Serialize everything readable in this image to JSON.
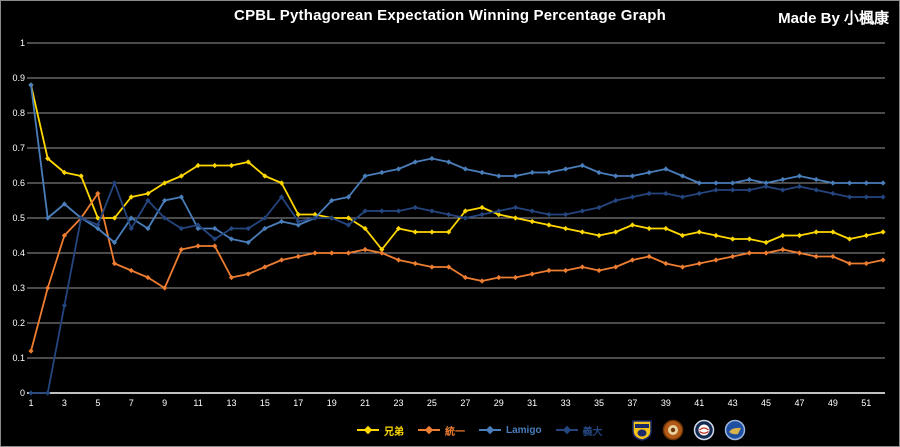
{
  "header": {
    "title": "CPBL Pythagorean Expectation Winning Percentage Graph",
    "credit": "Made By 小楓康"
  },
  "chart_data": {
    "type": "line",
    "title": "CPBL Pythagorean Expectation Winning Percentage Graph",
    "xlabel": "",
    "ylabel": "",
    "ylim": [
      0,
      1
    ],
    "grid": "horizontal",
    "legend_position": "bottom",
    "background": "#000000",
    "x_start": 1,
    "x_tick_labels": [
      "1",
      "3",
      "5",
      "7",
      "9",
      "11",
      "13",
      "15",
      "17",
      "19",
      "21",
      "23",
      "25",
      "27",
      "29",
      "31",
      "33",
      "35",
      "37",
      "39",
      "41",
      "43",
      "45",
      "47",
      "49",
      "51"
    ],
    "y_ticks": [
      0,
      0.1,
      0.2,
      0.3,
      0.4,
      0.5,
      0.6,
      0.7,
      0.8,
      0.9,
      1
    ],
    "y_tick_labels": [
      "0",
      "0.1",
      "0.2",
      "0.3",
      "0.4",
      "0.5",
      "0.6",
      "0.7",
      "0.8",
      "0.9",
      "1"
    ],
    "series": [
      {
        "key": "brothers",
        "name": "兄弟",
        "color": "#ffd800",
        "values": [
          0.88,
          0.67,
          0.63,
          0.62,
          0.5,
          0.5,
          0.56,
          0.57,
          0.6,
          0.62,
          0.65,
          0.65,
          0.65,
          0.66,
          0.62,
          0.6,
          0.51,
          0.51,
          0.5,
          0.5,
          0.47,
          0.41,
          0.47,
          0.46,
          0.46,
          0.46,
          0.52,
          0.53,
          0.51,
          0.5,
          0.49,
          0.48,
          0.47,
          0.46,
          0.45,
          0.46,
          0.48,
          0.47,
          0.47,
          0.45,
          0.46,
          0.45,
          0.44,
          0.44,
          0.43,
          0.45,
          0.45,
          0.46,
          0.46,
          0.44,
          0.45,
          0.46
        ]
      },
      {
        "key": "lions",
        "name": "統一",
        "color": "#ed7d31",
        "values": [
          0.12,
          0.3,
          0.45,
          0.5,
          0.57,
          0.37,
          0.35,
          0.33,
          0.3,
          0.41,
          0.42,
          0.42,
          0.33,
          0.34,
          0.36,
          0.38,
          0.39,
          0.4,
          0.4,
          0.4,
          0.41,
          0.4,
          0.38,
          0.37,
          0.36,
          0.36,
          0.33,
          0.32,
          0.33,
          0.33,
          0.34,
          0.35,
          0.35,
          0.36,
          0.35,
          0.36,
          0.38,
          0.39,
          0.37,
          0.36,
          0.37,
          0.38,
          0.39,
          0.4,
          0.4,
          0.41,
          0.4,
          0.39,
          0.39,
          0.37,
          0.37,
          0.38
        ]
      },
      {
        "key": "lamigo",
        "name": "Lamigo",
        "color": "#4a7ebb",
        "values": [
          0.88,
          0.5,
          0.54,
          0.5,
          0.47,
          0.43,
          0.5,
          0.47,
          0.55,
          0.56,
          0.47,
          0.47,
          0.44,
          0.43,
          0.47,
          0.49,
          0.48,
          0.5,
          0.55,
          0.56,
          0.62,
          0.63,
          0.64,
          0.66,
          0.67,
          0.66,
          0.64,
          0.63,
          0.62,
          0.62,
          0.63,
          0.63,
          0.64,
          0.65,
          0.63,
          0.62,
          0.62,
          0.63,
          0.64,
          0.62,
          0.6,
          0.6,
          0.6,
          0.61,
          0.6,
          0.61,
          0.62,
          0.61,
          0.6,
          0.6,
          0.6,
          0.6
        ]
      },
      {
        "key": "eda",
        "name": "義大",
        "color": "#24457e",
        "values": [
          0.0,
          0.0,
          0.25,
          0.5,
          0.48,
          0.6,
          0.47,
          0.55,
          0.5,
          0.47,
          0.48,
          0.44,
          0.47,
          0.47,
          0.5,
          0.56,
          0.49,
          0.5,
          0.5,
          0.48,
          0.52,
          0.52,
          0.52,
          0.53,
          0.52,
          0.51,
          0.5,
          0.51,
          0.52,
          0.53,
          0.52,
          0.51,
          0.51,
          0.52,
          0.53,
          0.55,
          0.56,
          0.57,
          0.57,
          0.56,
          0.57,
          0.58,
          0.58,
          0.58,
          0.59,
          0.58,
          0.59,
          0.58,
          0.57,
          0.56,
          0.56,
          0.56
        ]
      }
    ]
  },
  "logos": [
    {
      "icon": "ctbc-brothers-logo-icon"
    },
    {
      "icon": "uni-lions-logo-icon"
    },
    {
      "icon": "lamigo-monkeys-logo-icon"
    },
    {
      "icon": "eda-rhinos-logo-icon"
    }
  ]
}
